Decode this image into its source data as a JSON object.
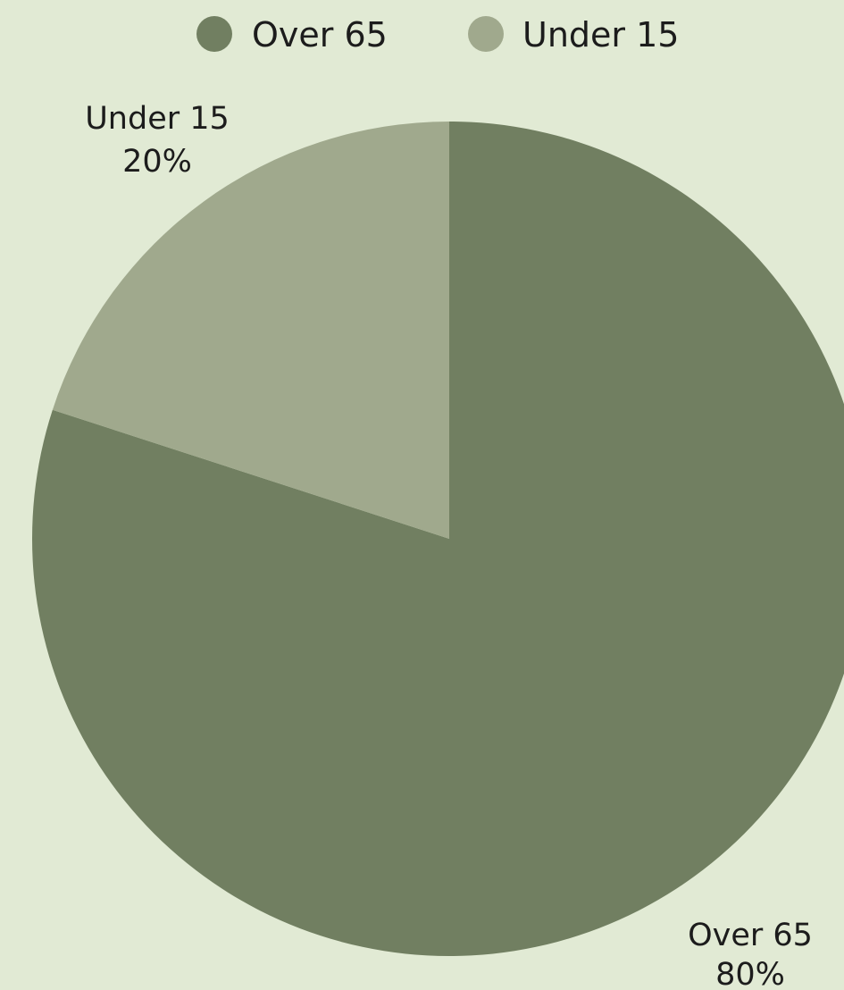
{
  "chart_data": {
    "type": "pie",
    "title": "",
    "series": [
      {
        "name": "Over 65",
        "value": 80,
        "percent_label": "80%",
        "color": "#717f61"
      },
      {
        "name": "Under 15",
        "value": 20,
        "percent_label": "20%",
        "color": "#a0a98d"
      }
    ],
    "legend": {
      "position": "top",
      "entries": [
        "Over 65",
        "Under 15"
      ]
    },
    "background": "#e1ead4"
  }
}
